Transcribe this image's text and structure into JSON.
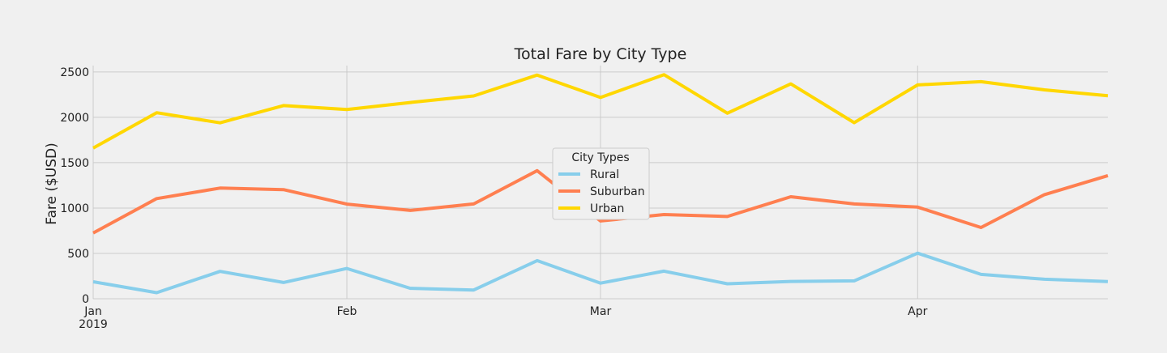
{
  "chart_data": {
    "type": "line",
    "title": "Total Fare by City Type",
    "xlabel": "",
    "ylabel": "Fare ($USD)",
    "x": [
      "2019-01-06",
      "2019-01-13",
      "2019-01-20",
      "2019-01-27",
      "2019-02-03",
      "2019-02-10",
      "2019-02-17",
      "2019-02-24",
      "2019-03-03",
      "2019-03-10",
      "2019-03-17",
      "2019-03-24",
      "2019-03-31",
      "2019-04-07",
      "2019-04-14",
      "2019-04-21",
      "2019-04-28"
    ],
    "xlim": [
      "2019-01-06",
      "2019-04-28"
    ],
    "ylim": [
      0,
      2570
    ],
    "yticks": [
      0,
      500,
      1000,
      1500,
      2000,
      2500
    ],
    "xticks": [
      {
        "date": "2019-01-06",
        "label": "Jan",
        "sublabel": "2019"
      },
      {
        "date": "2019-02-03",
        "label": "Feb",
        "sublabel": ""
      },
      {
        "date": "2019-03-03",
        "label": "Mar",
        "sublabel": ""
      },
      {
        "date": "2019-04-07",
        "label": "Apr",
        "sublabel": ""
      }
    ],
    "grid": true,
    "legend": {
      "title": "City Types",
      "position": "center"
    },
    "series": [
      {
        "name": "Rural",
        "color": "#87ceeb",
        "values": [
          187,
          67,
          302,
          179,
          334,
          115,
          96,
          420,
          172,
          304,
          165,
          191,
          197,
          502,
          269,
          215,
          190
        ]
      },
      {
        "name": "Suburban",
        "color": "#ff7f50",
        "values": [
          725,
          1104,
          1220,
          1203,
          1043,
          974,
          1045,
          1412,
          858,
          928,
          907,
          1124,
          1045,
          1010,
          785,
          1148,
          1357
        ]
      },
      {
        "name": "Urban",
        "color": "#ffd700",
        "values": [
          1661,
          2051,
          1939,
          2129,
          2086,
          2163,
          2235,
          2466,
          2218,
          2470,
          2045,
          2368,
          1941,
          2357,
          2392,
          2302,
          2237
        ]
      }
    ]
  }
}
